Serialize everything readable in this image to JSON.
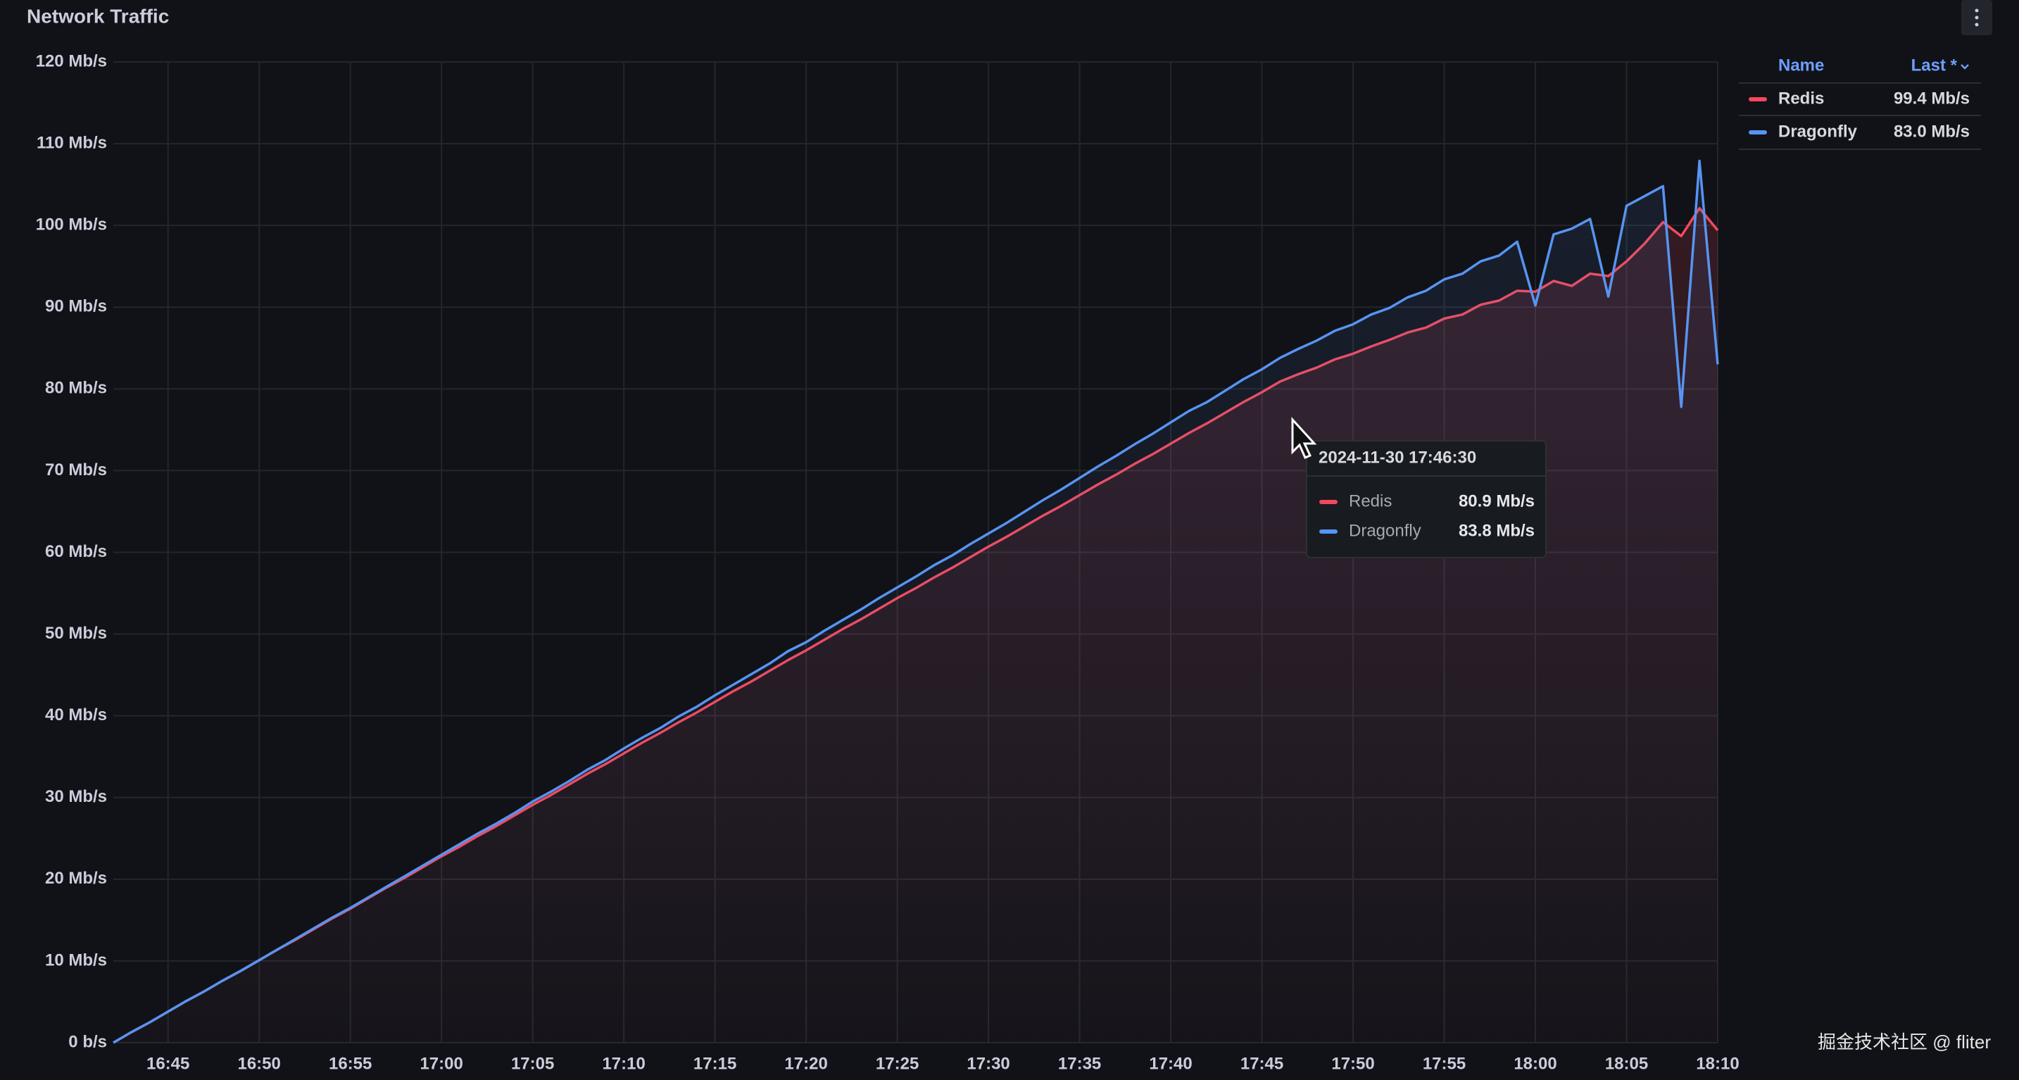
{
  "chart_data": {
    "type": "line",
    "title": "Network Traffic",
    "x": [
      "16:42",
      "16:43",
      "16:44",
      "16:45",
      "16:46",
      "16:47",
      "16:48",
      "16:49",
      "16:50",
      "16:51",
      "16:52",
      "16:53",
      "16:54",
      "16:55",
      "16:56",
      "16:57",
      "16:58",
      "16:59",
      "17:00",
      "17:01",
      "17:02",
      "17:03",
      "17:04",
      "17:05",
      "17:06",
      "17:07",
      "17:08",
      "17:09",
      "17:10",
      "17:11",
      "17:12",
      "17:13",
      "17:14",
      "17:15",
      "17:16",
      "17:17",
      "17:18",
      "17:19",
      "17:20",
      "17:21",
      "17:22",
      "17:23",
      "17:24",
      "17:25",
      "17:26",
      "17:27",
      "17:28",
      "17:29",
      "17:30",
      "17:31",
      "17:32",
      "17:33",
      "17:34",
      "17:35",
      "17:36",
      "17:37",
      "17:38",
      "17:39",
      "17:40",
      "17:41",
      "17:42",
      "17:43",
      "17:44",
      "17:45",
      "17:46",
      "17:47",
      "17:48",
      "17:49",
      "17:50",
      "17:51",
      "17:52",
      "17:53",
      "17:54",
      "17:55",
      "17:56",
      "17:57",
      "17:58",
      "17:59",
      "18:00",
      "18:01",
      "18:02",
      "18:03",
      "18:04",
      "18:05",
      "18:06",
      "18:07",
      "18:08",
      "18:09",
      "18:10"
    ],
    "series": [
      {
        "name": "Redis",
        "color": "#f2495c",
        "legend_value": "99.4 Mb/s",
        "values": [
          0,
          1.3,
          2.5,
          3.8,
          5.1,
          6.3,
          7.6,
          8.8,
          10.1,
          11.4,
          12.6,
          13.9,
          15.2,
          16.4,
          17.7,
          19.0,
          20.2,
          21.5,
          22.8,
          24.0,
          25.3,
          26.5,
          27.8,
          29.1,
          30.3,
          31.6,
          32.9,
          34.1,
          35.4,
          36.7,
          37.9,
          39.2,
          40.4,
          41.7,
          43.0,
          44.2,
          45.5,
          46.8,
          48.0,
          49.3,
          50.6,
          51.8,
          53.1,
          54.4,
          55.6,
          56.9,
          58.1,
          59.4,
          60.7,
          61.9,
          63.2,
          64.5,
          65.7,
          67.0,
          68.3,
          69.5,
          70.8,
          72.0,
          73.3,
          74.6,
          75.8,
          77.1,
          78.4,
          79.6,
          80.9,
          81.8,
          82.6,
          83.6,
          84.3,
          85.2,
          86.0,
          86.9,
          87.5,
          88.6,
          89.1,
          90.3,
          90.8,
          92.0,
          91.9,
          93.2,
          92.6,
          94.1,
          93.8,
          95.6,
          97.8,
          100.4,
          98.7,
          102.1,
          99.4
        ]
      },
      {
        "name": "Dragonfly",
        "color": "#5794f2",
        "legend_value": "83.0 Mb/s",
        "values": [
          0,
          1.3,
          2.5,
          3.8,
          5.1,
          6.3,
          7.6,
          8.8,
          10.1,
          11.4,
          12.7,
          14.0,
          15.3,
          16.5,
          17.8,
          19.1,
          20.4,
          21.7,
          23.0,
          24.3,
          25.6,
          26.8,
          28.1,
          29.5,
          30.7,
          32.0,
          33.4,
          34.6,
          36.0,
          37.3,
          38.5,
          39.9,
          41.1,
          42.5,
          43.8,
          45.1,
          46.4,
          47.9,
          49.0,
          50.4,
          51.7,
          53.0,
          54.4,
          55.7,
          57.0,
          58.4,
          59.6,
          61.0,
          62.3,
          63.6,
          65.0,
          66.4,
          67.7,
          69.1,
          70.5,
          71.8,
          73.2,
          74.5,
          75.9,
          77.3,
          78.4,
          79.8,
          81.2,
          82.4,
          83.8,
          84.9,
          85.9,
          87.1,
          87.9,
          89.1,
          89.9,
          91.2,
          92.0,
          93.4,
          94.1,
          95.6,
          96.3,
          98.0,
          90.2,
          98.9,
          99.6,
          100.8,
          91.3,
          102.4,
          103.6,
          104.8,
          77.8,
          107.9,
          83.0
        ]
      }
    ],
    "xlim": [
      "16:42",
      "18:10"
    ],
    "xticks": [
      "16:45",
      "16:50",
      "16:55",
      "17:00",
      "17:05",
      "17:10",
      "17:15",
      "17:20",
      "17:25",
      "17:30",
      "17:35",
      "17:40",
      "17:45",
      "17:50",
      "17:55",
      "18:00",
      "18:05",
      "18:10"
    ],
    "ylim": [
      0,
      120
    ],
    "yticks": [
      {
        "value": 0,
        "label": "0 b/s"
      },
      {
        "value": 10,
        "label": "10 Mb/s"
      },
      {
        "value": 20,
        "label": "20 Mb/s"
      },
      {
        "value": 30,
        "label": "30 Mb/s"
      },
      {
        "value": 40,
        "label": "40 Mb/s"
      },
      {
        "value": 50,
        "label": "50 Mb/s"
      },
      {
        "value": 60,
        "label": "60 Mb/s"
      },
      {
        "value": 70,
        "label": "70 Mb/s"
      },
      {
        "value": 80,
        "label": "80 Mb/s"
      },
      {
        "value": 90,
        "label": "90 Mb/s"
      },
      {
        "value": 100,
        "label": "100 Mb/s"
      },
      {
        "value": 110,
        "label": "110 Mb/s"
      },
      {
        "value": 120,
        "label": "120 Mb/s"
      }
    ],
    "grid": true,
    "legend": {
      "position": "right",
      "header": [
        "Name",
        "Last *"
      ]
    },
    "tooltip": {
      "time": "2024-11-30 17:46:30",
      "values": [
        "80.9 Mb/s",
        "83.8 Mb/s"
      ]
    },
    "watermark": "掘金技术社区 @ fliter"
  }
}
